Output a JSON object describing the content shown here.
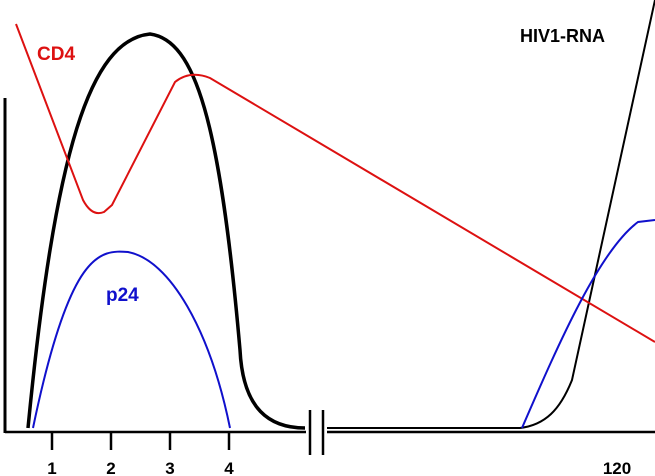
{
  "chart_data": {
    "type": "line",
    "title": "",
    "xlabel": "",
    "ylabel": "",
    "x_ticks": [
      "1",
      "2",
      "3",
      "4",
      "120"
    ],
    "axis_break": "between 4 and 120",
    "grid": false,
    "series": [
      {
        "name": "HIV1-RNA",
        "color": "#000000",
        "segment": "early",
        "points": [
          [
            0.75,
            0.0
          ],
          [
            1.0,
            0.45
          ],
          [
            1.5,
            0.8
          ],
          [
            2.0,
            0.96
          ],
          [
            2.6,
            1.0
          ],
          [
            3.0,
            0.95
          ],
          [
            3.5,
            0.75
          ],
          [
            4.0,
            0.38
          ],
          [
            4.25,
            0.05
          ],
          [
            4.5,
            0.01
          ]
        ]
      },
      {
        "name": "CD4",
        "color": "#dd1111",
        "points": [
          [
            0.0,
            0.85
          ],
          [
            1.2,
            0.55
          ],
          [
            1.6,
            0.5
          ],
          [
            1.85,
            0.52
          ],
          [
            2.6,
            0.72
          ],
          [
            3.2,
            0.85
          ],
          [
            3.6,
            0.83
          ],
          [
            120,
            0.22
          ]
        ]
      },
      {
        "name": "p24",
        "color": "#1010cc",
        "segment": "early",
        "points": [
          [
            0.8,
            0.0
          ],
          [
            1.2,
            0.3
          ],
          [
            1.7,
            0.44
          ],
          [
            2.1,
            0.45
          ],
          [
            2.6,
            0.43
          ],
          [
            3.2,
            0.33
          ],
          [
            3.7,
            0.18
          ],
          [
            4.0,
            0.0
          ]
        ]
      }
    ],
    "late_segments": {
      "hiv1_rna": [
        [
          114,
          0.0
        ],
        [
          116,
          0.06
        ],
        [
          118,
          0.4
        ],
        [
          120,
          0.92
        ]
      ],
      "p24": [
        [
          114,
          0.0
        ],
        [
          118,
          0.4
        ],
        [
          120,
          0.56
        ]
      ]
    },
    "labels": {
      "cd4": "CD4",
      "hiv1_rna": "HIV1-RNA",
      "p24": "p24"
    }
  }
}
